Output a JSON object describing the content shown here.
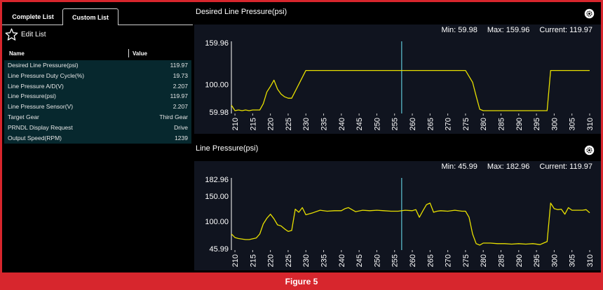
{
  "tabs": [
    {
      "label": "Complete List",
      "active": false
    },
    {
      "label": "Custom List",
      "active": true
    }
  ],
  "edit_list": {
    "label": "Edit List",
    "icon": "star-icon"
  },
  "table": {
    "headers": {
      "name": "Name",
      "value": "Value"
    },
    "rows": [
      {
        "name": "Desired Line Pressure(psi)",
        "value": "119.97"
      },
      {
        "name": "Line Pressure Duty Cycle(%)",
        "value": "19.73"
      },
      {
        "name": "Line Pressure A/D(V)",
        "value": "2.207"
      },
      {
        "name": "Line Pressure(psi)",
        "value": "119.97"
      },
      {
        "name": "Line Pressure Sensor(V)",
        "value": "2.207"
      },
      {
        "name": "Target Gear",
        "value": "Third Gear"
      },
      {
        "name": "PRNDL Display Request",
        "value": "Drive"
      },
      {
        "name": "Output Speed(RPM)",
        "value": "1239"
      }
    ]
  },
  "charts": [
    {
      "title": "Desired Line Pressure(psi)",
      "icon": "gear-icon",
      "min_label": "Min: 59.98",
      "max_label": "Max: 159.96",
      "current_label": "Current: 119.97"
    },
    {
      "title": "Line Pressure(psi)",
      "icon": "gear-icon",
      "min_label": "Min: 45.99",
      "max_label": "Max: 182.96",
      "current_label": "Current: 119.97"
    }
  ],
  "caption": "Figure 5",
  "colors": {
    "line": "#e8e000",
    "cursor": "#5fc6d6",
    "plot_bg": "#10141f",
    "table_bg": "#07282e",
    "frame": "#d7262d"
  },
  "chart_data": [
    {
      "type": "line",
      "title": "Desired Line Pressure(psi)",
      "xlim": [
        209,
        310
      ],
      "ylim": [
        59.98,
        159.96
      ],
      "yticks": [
        59.98,
        100.0,
        159.96
      ],
      "ytick_labels": [
        "59.98",
        "100.00",
        "159.96"
      ],
      "xticks": [
        210,
        215,
        220,
        225,
        230,
        235,
        240,
        245,
        250,
        255,
        260,
        265,
        270,
        275,
        280,
        285,
        290,
        295,
        300,
        305,
        310
      ],
      "cursor_x": 257,
      "series": [
        {
          "x": [
            209,
            210,
            211,
            212,
            213,
            214,
            215,
            216,
            217,
            218,
            219,
            220,
            221,
            222,
            223,
            224,
            225,
            226,
            230,
            240,
            250,
            260,
            270,
            275,
            277,
            278,
            279,
            280,
            285,
            290,
            295,
            297,
            298,
            299,
            300,
            305,
            310
          ],
          "y": [
            70,
            62,
            63,
            62,
            63,
            62,
            63,
            63,
            63,
            72,
            89,
            97,
            106,
            93,
            86,
            82,
            80,
            80,
            120,
            120,
            120,
            120,
            120,
            120,
            103,
            83,
            64,
            62,
            62,
            62,
            62,
            62,
            62,
            120,
            120,
            120,
            120
          ]
        }
      ]
    },
    {
      "type": "line",
      "title": "Line Pressure(psi)",
      "xlim": [
        209,
        310
      ],
      "ylim": [
        45.99,
        182.96
      ],
      "yticks": [
        45.99,
        100.0,
        150.0,
        182.96
      ],
      "ytick_labels": [
        "45.99",
        "100.00",
        "150.00",
        "182.96"
      ],
      "xticks": [
        210,
        215,
        220,
        225,
        230,
        235,
        240,
        245,
        250,
        255,
        260,
        265,
        270,
        275,
        280,
        285,
        290,
        295,
        300,
        305,
        310
      ],
      "cursor_x": 257,
      "series": [
        {
          "x": [
            209,
            210,
            211,
            213,
            214,
            216,
            217,
            218,
            219,
            220,
            221,
            222,
            223,
            224,
            225,
            226,
            227,
            228,
            229,
            230,
            232,
            234,
            236,
            238,
            240,
            241,
            242,
            244,
            246,
            248,
            250,
            252,
            254,
            256,
            258,
            260,
            261,
            262,
            263,
            264,
            265,
            266,
            267,
            268,
            270,
            272,
            274,
            275,
            276,
            277,
            278,
            279,
            280,
            282,
            284,
            286,
            288,
            290,
            292,
            294,
            296,
            297,
            298,
            299,
            300,
            301,
            302,
            303,
            304,
            305,
            306,
            308,
            309,
            310
          ],
          "y": [
            75,
            68,
            66,
            64,
            64,
            67,
            75,
            95,
            106,
            114,
            105,
            93,
            91,
            85,
            80,
            82,
            124,
            118,
            127,
            113,
            117,
            122,
            120,
            121,
            121,
            125,
            127,
            119,
            122,
            121,
            122,
            121,
            120,
            120,
            122,
            121,
            123,
            108,
            121,
            133,
            136,
            118,
            120,
            121,
            120,
            122,
            120,
            120,
            108,
            75,
            56,
            53,
            57,
            57,
            56,
            56,
            55,
            56,
            55,
            56,
            54,
            57,
            60,
            136,
            125,
            123,
            124,
            114,
            127,
            122,
            122,
            122,
            123,
            117
          ]
        }
      ]
    }
  ]
}
